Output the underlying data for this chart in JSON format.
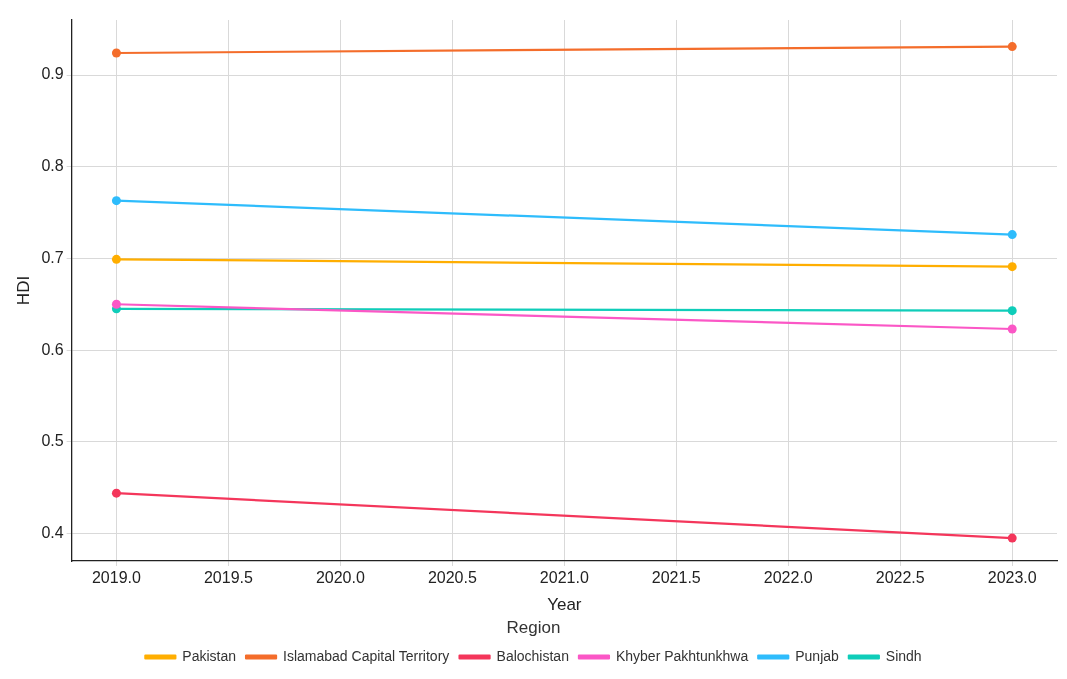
{
  "chart_data": {
    "type": "line",
    "xlabel": "Year",
    "ylabel": "HDI",
    "legend_title": "Region",
    "legend": "bottom",
    "grid": true,
    "marker": "circle",
    "line_style": "solid",
    "x": [
      2019,
      2023
    ],
    "xlim": [
      2018.8,
      2023.2
    ],
    "xticks": [
      {
        "value": 2019,
        "label": "2019.0"
      },
      2019.5,
      {
        "value": 2020,
        "label": "2020.0"
      },
      2020.5,
      {
        "value": 2021,
        "label": "2021.0"
      },
      2021.5,
      {
        "value": 2022,
        "label": "2022.0"
      },
      2022.5,
      {
        "value": 2023,
        "label": "2023.0"
      }
    ],
    "ylim": [
      0.37,
      0.96
    ],
    "yticks": [
      0.4,
      0.5,
      0.6,
      0.7,
      0.8,
      0.9
    ],
    "series": [
      {
        "name": "Pakistan",
        "color": "#ffae00",
        "values": [
          0.699,
          0.691
        ]
      },
      {
        "name": "Islamabad Capital Territory",
        "color": "#f46d2b",
        "values": [
          0.924,
          0.931
        ]
      },
      {
        "name": "Balochistan",
        "color": "#f4365b",
        "values": [
          0.444,
          0.395
        ]
      },
      {
        "name": "Khyber Pakhtunkhwa",
        "color": "#fb57c6",
        "values": [
          0.65,
          0.623
        ]
      },
      {
        "name": "Punjab",
        "color": "#2ebcfc",
        "values": [
          0.763,
          0.726
        ]
      },
      {
        "name": "Sindh",
        "color": "#0fcdb9",
        "values": [
          0.645,
          0.643
        ]
      }
    ]
  }
}
